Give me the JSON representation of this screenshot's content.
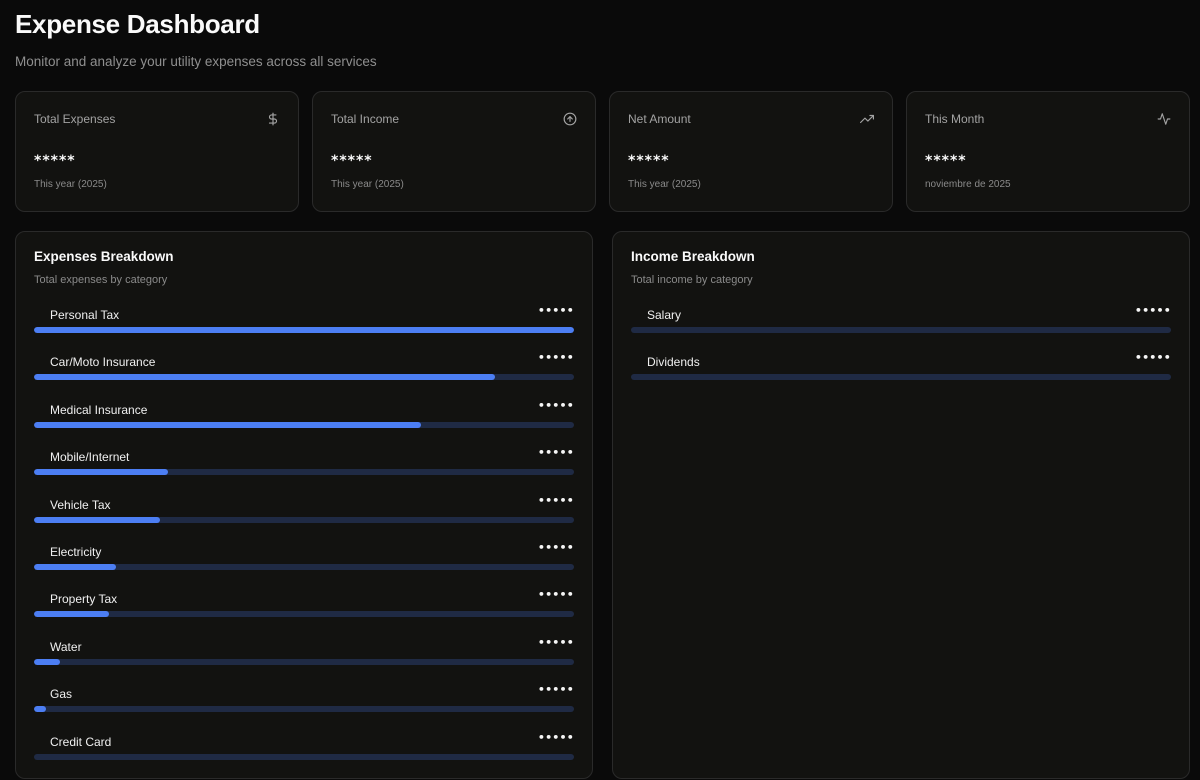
{
  "header": {
    "title": "Expense Dashboard",
    "subtitle": "Monitor and analyze your utility expenses across all services"
  },
  "stats": [
    {
      "label": "Total Expenses",
      "value": "*****",
      "sub": "This year (2025)",
      "icon": "dollar-icon"
    },
    {
      "label": "Total Income",
      "value": "*****",
      "sub": "This year (2025)",
      "icon": "arrow-up-circle-icon"
    },
    {
      "label": "Net Amount",
      "value": "*****",
      "sub": "This year (2025)",
      "icon": "trending-up-icon"
    },
    {
      "label": "This Month",
      "value": "*****",
      "sub": "noviembre de 2025",
      "icon": "activity-icon"
    }
  ],
  "expenses": {
    "title": "Expenses Breakdown",
    "subtitle": "Total expenses by category",
    "items": [
      {
        "label": "Personal Tax",
        "value": "•••••",
        "fraction": 1.0
      },
      {
        "label": "Car/Moto Insurance",
        "value": "•••••",
        "fraction": 0.853
      },
      {
        "label": "Medical Insurance",
        "value": "•••••",
        "fraction": 0.717
      },
      {
        "label": "Mobile/Internet",
        "value": "•••••",
        "fraction": 0.248
      },
      {
        "label": "Vehicle Tax",
        "value": "•••••",
        "fraction": 0.234
      },
      {
        "label": "Electricity",
        "value": "•••••",
        "fraction": 0.151
      },
      {
        "label": "Property Tax",
        "value": "•••••",
        "fraction": 0.138
      },
      {
        "label": "Water",
        "value": "•••••",
        "fraction": 0.048
      },
      {
        "label": "Gas",
        "value": "•••••",
        "fraction": 0.022
      },
      {
        "label": "Credit Card",
        "value": "•••••",
        "fraction": 0.0
      }
    ]
  },
  "income": {
    "title": "Income Breakdown",
    "subtitle": "Total income by category",
    "items": [
      {
        "label": "Salary",
        "value": "•••••",
        "fraction": 0.0
      },
      {
        "label": "Dividends",
        "value": "•••••",
        "fraction": 0.0
      }
    ]
  },
  "colors": {
    "background": "#0a0a0a",
    "card": "#121210",
    "border": "#2a2a2a",
    "bar_fill": "#4c7ef3",
    "bar_track": "#1f2a44"
  }
}
